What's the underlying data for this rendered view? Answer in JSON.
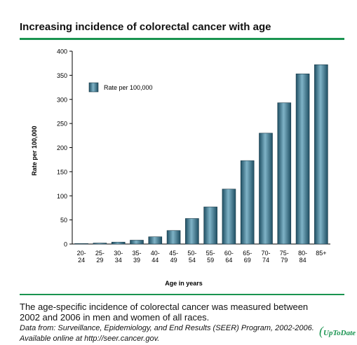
{
  "title": "Increasing incidence of colorectal cancer with age",
  "caption": "The age-specific incidence of colorectal cancer was measured between 2002 and 2006 in men and women of all races.",
  "source": "Data from: Surveillance, Epidemiology, and End Results (SEER) Program, 2002-2006. Available online at http://seer.cancer.gov.",
  "logo_text": "UpToDate",
  "colors": {
    "rule": "#1a9450",
    "bar_dark": "#1f4f63",
    "bar_light": "#7fb3c7"
  },
  "chart_data": {
    "type": "bar",
    "categories": [
      "20-24",
      "25-29",
      "30-34",
      "35-39",
      "40-44",
      "45-49",
      "50-54",
      "55-59",
      "60-64",
      "65-69",
      "70-74",
      "75-79",
      "80-84",
      "85+"
    ],
    "tick_labels": [
      [
        "20-",
        "24"
      ],
      [
        "25-",
        "29"
      ],
      [
        "30-",
        "34"
      ],
      [
        "35-",
        "39"
      ],
      [
        "40-",
        "44"
      ],
      [
        "45-",
        "49"
      ],
      [
        "50-",
        "54"
      ],
      [
        "55-",
        "59"
      ],
      [
        "60-",
        "64"
      ],
      [
        "65-",
        "69"
      ],
      [
        "70-",
        "74"
      ],
      [
        "75-",
        "79"
      ],
      [
        "80-",
        "84"
      ],
      [
        "85+",
        ""
      ]
    ],
    "series": [
      {
        "name": "Rate per 100,000",
        "values": [
          1,
          2,
          4,
          8,
          15,
          28,
          53,
          77,
          114,
          173,
          230,
          293,
          353,
          372
        ]
      }
    ],
    "xlabel": "Age in years",
    "ylabel": "Rate per 100,000",
    "ylim": [
      0,
      400
    ],
    "yticks": [
      0,
      50,
      100,
      150,
      200,
      250,
      300,
      350,
      400
    ],
    "legend_position": "top-left",
    "grid": false
  }
}
